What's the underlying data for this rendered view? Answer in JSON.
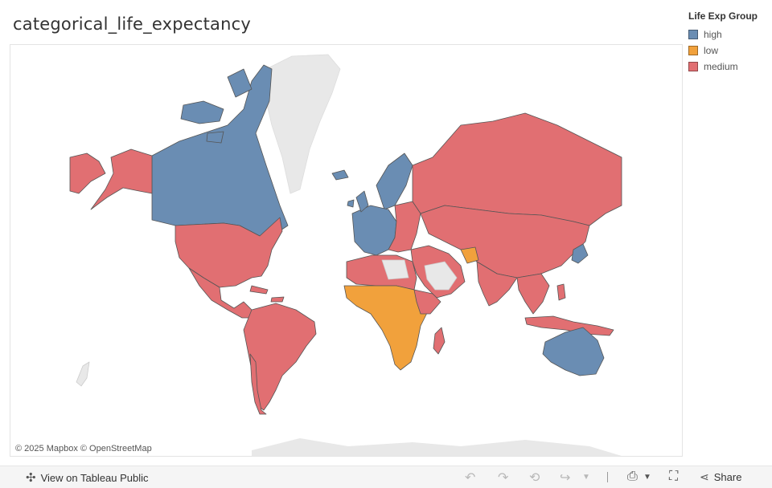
{
  "title": "categorical_life_expectancy",
  "legend": {
    "title": "Life Exp Group",
    "items": [
      {
        "label": "high",
        "color": "#6a8db3"
      },
      {
        "label": "low",
        "color": "#f1a13c"
      },
      {
        "label": "medium",
        "color": "#e16f72"
      }
    ]
  },
  "map": {
    "attribution": "© 2025 Mapbox  © OpenStreetMap",
    "no_data_color": "#e8e8e8",
    "border_color": "#555555"
  },
  "toolbar": {
    "view_label": "View on Tableau Public",
    "share_label": "Share",
    "icons": [
      "undo-icon",
      "redo-icon",
      "revert-icon",
      "refresh-icon",
      "download-icon",
      "fullscreen-icon",
      "share-icon"
    ]
  }
}
